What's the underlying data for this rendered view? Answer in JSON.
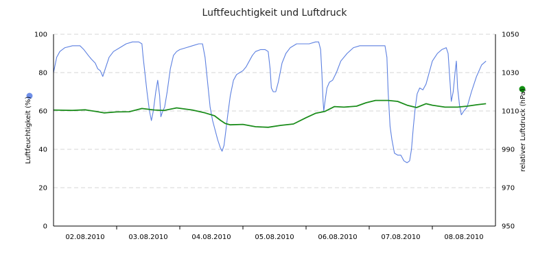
{
  "chart_data": {
    "type": "line",
    "title": "Luftfeuchtigkeit und Luftdruck",
    "x_ticks": [
      "02.08.2010",
      "03.08.2010",
      "04.08.2010",
      "05.08.2010",
      "06.08.2010",
      "07.08.2010",
      "08.08.2010"
    ],
    "x_range_days": [
      0,
      7
    ],
    "y_left": {
      "label": "Luftfeuchtigkeit (%)",
      "range": [
        0,
        100
      ],
      "ticks": [
        "0",
        "20",
        "40",
        "60",
        "80",
        "100"
      ]
    },
    "y_right": {
      "label": "relativer Luftdruck (hPa)",
      "range": [
        950,
        1050
      ],
      "ticks": [
        "950",
        "970",
        "990",
        "1010",
        "1030",
        "1050"
      ]
    },
    "grid": "horizontal-dashed",
    "series": [
      {
        "axis": "left",
        "color": "#5b7fe0",
        "points": [
          [
            0.0,
            80
          ],
          [
            0.05,
            88
          ],
          [
            0.1,
            91
          ],
          [
            0.18,
            93
          ],
          [
            0.3,
            94
          ],
          [
            0.42,
            94
          ],
          [
            0.48,
            92
          ],
          [
            0.55,
            89
          ],
          [
            0.6,
            87
          ],
          [
            0.66,
            85
          ],
          [
            0.7,
            82
          ],
          [
            0.74,
            81
          ],
          [
            0.78,
            78
          ],
          [
            0.82,
            82
          ],
          [
            0.88,
            88
          ],
          [
            0.95,
            91
          ],
          [
            1.05,
            93
          ],
          [
            1.15,
            95
          ],
          [
            1.25,
            96
          ],
          [
            1.35,
            96
          ],
          [
            1.4,
            95
          ],
          [
            1.42,
            88
          ],
          [
            1.48,
            70
          ],
          [
            1.52,
            60
          ],
          [
            1.55,
            55
          ],
          [
            1.58,
            60
          ],
          [
            1.62,
            70
          ],
          [
            1.65,
            76
          ],
          [
            1.68,
            68
          ],
          [
            1.7,
            57
          ],
          [
            1.73,
            60
          ],
          [
            1.76,
            62
          ],
          [
            1.8,
            70
          ],
          [
            1.85,
            82
          ],
          [
            1.9,
            89
          ],
          [
            1.95,
            91
          ],
          [
            2.0,
            92
          ],
          [
            2.1,
            93
          ],
          [
            2.2,
            94
          ],
          [
            2.3,
            95
          ],
          [
            2.36,
            95
          ],
          [
            2.4,
            88
          ],
          [
            2.44,
            75
          ],
          [
            2.48,
            62
          ],
          [
            2.52,
            55
          ],
          [
            2.56,
            50
          ],
          [
            2.6,
            45
          ],
          [
            2.64,
            41
          ],
          [
            2.67,
            39
          ],
          [
            2.7,
            42
          ],
          [
            2.73,
            50
          ],
          [
            2.76,
            58
          ],
          [
            2.8,
            68
          ],
          [
            2.85,
            76
          ],
          [
            2.9,
            79
          ],
          [
            2.95,
            80
          ],
          [
            3.0,
            81
          ],
          [
            3.05,
            83
          ],
          [
            3.1,
            86
          ],
          [
            3.15,
            89
          ],
          [
            3.2,
            91
          ],
          [
            3.28,
            92
          ],
          [
            3.35,
            92
          ],
          [
            3.4,
            91
          ],
          [
            3.43,
            82
          ],
          [
            3.45,
            72
          ],
          [
            3.48,
            70
          ],
          [
            3.52,
            70
          ],
          [
            3.56,
            75
          ],
          [
            3.62,
            85
          ],
          [
            3.68,
            90
          ],
          [
            3.75,
            93
          ],
          [
            3.85,
            95
          ],
          [
            3.95,
            95
          ],
          [
            4.05,
            95
          ],
          [
            4.15,
            96
          ],
          [
            4.2,
            96
          ],
          [
            4.23,
            92
          ],
          [
            4.25,
            80
          ],
          [
            4.27,
            65
          ],
          [
            4.28,
            60
          ],
          [
            4.3,
            65
          ],
          [
            4.33,
            72
          ],
          [
            4.37,
            75
          ],
          [
            4.42,
            76
          ],
          [
            4.48,
            80
          ],
          [
            4.55,
            86
          ],
          [
            4.65,
            90
          ],
          [
            4.75,
            93
          ],
          [
            4.85,
            94
          ],
          [
            5.0,
            94
          ],
          [
            5.15,
            94
          ],
          [
            5.25,
            94
          ],
          [
            5.28,
            88
          ],
          [
            5.3,
            70
          ],
          [
            5.33,
            52
          ],
          [
            5.36,
            45
          ],
          [
            5.4,
            38
          ],
          [
            5.45,
            37
          ],
          [
            5.5,
            37
          ],
          [
            5.55,
            34
          ],
          [
            5.6,
            33
          ],
          [
            5.64,
            34
          ],
          [
            5.67,
            40
          ],
          [
            5.7,
            52
          ],
          [
            5.73,
            62
          ],
          [
            5.76,
            69
          ],
          [
            5.8,
            72
          ],
          [
            5.85,
            71
          ],
          [
            5.9,
            74
          ],
          [
            5.95,
            80
          ],
          [
            6.0,
            86
          ],
          [
            6.08,
            90
          ],
          [
            6.15,
            92
          ],
          [
            6.22,
            93
          ],
          [
            6.25,
            90
          ],
          [
            6.28,
            75
          ],
          [
            6.3,
            65
          ],
          [
            6.33,
            70
          ],
          [
            6.36,
            80
          ],
          [
            6.38,
            86
          ],
          [
            6.4,
            72
          ],
          [
            6.43,
            63
          ],
          [
            6.46,
            58
          ],
          [
            6.5,
            60
          ],
          [
            6.55,
            62
          ],
          [
            6.62,
            70
          ],
          [
            6.7,
            78
          ],
          [
            6.78,
            84
          ],
          [
            6.85,
            86
          ]
        ]
      },
      {
        "axis": "right",
        "color": "#1a8c1a",
        "points": [
          [
            0.0,
            1010.5
          ],
          [
            0.3,
            1010.3
          ],
          [
            0.5,
            1010.6
          ],
          [
            0.7,
            1009.6
          ],
          [
            0.8,
            1009.0
          ],
          [
            1.0,
            1009.5
          ],
          [
            1.2,
            1009.6
          ],
          [
            1.4,
            1011.3
          ],
          [
            1.6,
            1010.5
          ],
          [
            1.75,
            1010.3
          ],
          [
            1.95,
            1011.6
          ],
          [
            2.2,
            1010.5
          ],
          [
            2.4,
            1009.0
          ],
          [
            2.55,
            1007.5
          ],
          [
            2.65,
            1005.0
          ],
          [
            2.72,
            1003.5
          ],
          [
            2.8,
            1002.8
          ],
          [
            3.0,
            1003.0
          ],
          [
            3.2,
            1001.8
          ],
          [
            3.4,
            1001.5
          ],
          [
            3.6,
            1002.5
          ],
          [
            3.8,
            1003.2
          ],
          [
            4.0,
            1006.5
          ],
          [
            4.15,
            1008.8
          ],
          [
            4.3,
            1009.8
          ],
          [
            4.45,
            1012.3
          ],
          [
            4.6,
            1012.0
          ],
          [
            4.8,
            1012.5
          ],
          [
            4.95,
            1014.3
          ],
          [
            5.1,
            1015.5
          ],
          [
            5.3,
            1015.5
          ],
          [
            5.45,
            1015.0
          ],
          [
            5.6,
            1013.0
          ],
          [
            5.75,
            1011.8
          ],
          [
            5.9,
            1013.8
          ],
          [
            6.0,
            1013.0
          ],
          [
            6.2,
            1012.0
          ],
          [
            6.4,
            1012.0
          ],
          [
            6.55,
            1012.5
          ],
          [
            6.7,
            1013.2
          ],
          [
            6.85,
            1013.8
          ]
        ]
      }
    ]
  }
}
